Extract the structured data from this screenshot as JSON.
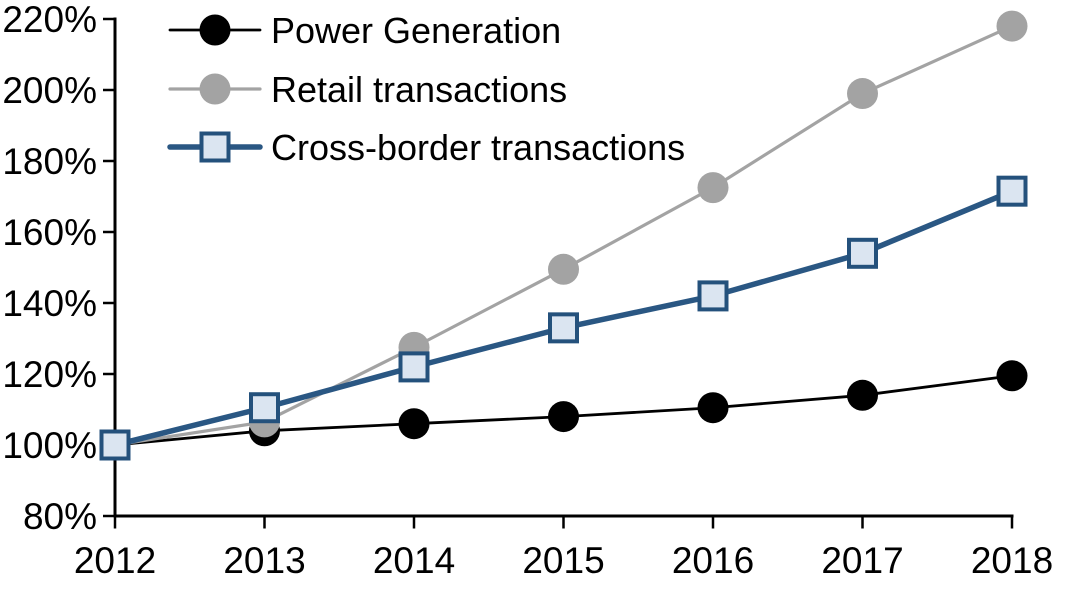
{
  "chart_data": {
    "type": "line",
    "title": "",
    "xlabel": "",
    "ylabel": "",
    "x_categories": [
      "2012",
      "2013",
      "2014",
      "2015",
      "2016",
      "2017",
      "2018"
    ],
    "series": [
      {
        "name": "Power Generation",
        "values": [
          100,
          104,
          106,
          108,
          110.5,
          114,
          119.5
        ],
        "color": "#000000",
        "marker": "circle",
        "marker_fill": "#000000",
        "line_width": 2.8
      },
      {
        "name": "Retail transactions",
        "values": [
          100,
          106.5,
          127.5,
          149.5,
          172.5,
          199,
          218
        ],
        "color": "#a3a3a3",
        "marker": "circle",
        "marker_fill": "#a3a3a3",
        "line_width": 3.2
      },
      {
        "name": "Cross-border transactions",
        "values": [
          100,
          110.5,
          122,
          133,
          142,
          154,
          171.5
        ],
        "color": "#2a5783",
        "marker": "square",
        "marker_fill": "#dbe5f1",
        "marker_border": "#24517c",
        "line_width": 5.5
      }
    ],
    "ylim": [
      80,
      220
    ],
    "ytick_step": 20,
    "ytick_labels": [
      "80%",
      "100%",
      "120%",
      "140%",
      "160%",
      "180%",
      "200%",
      "220%"
    ],
    "grid": false,
    "legend_position": "top-left",
    "axis_color": "#000000",
    "background_color": "#ffffff"
  }
}
